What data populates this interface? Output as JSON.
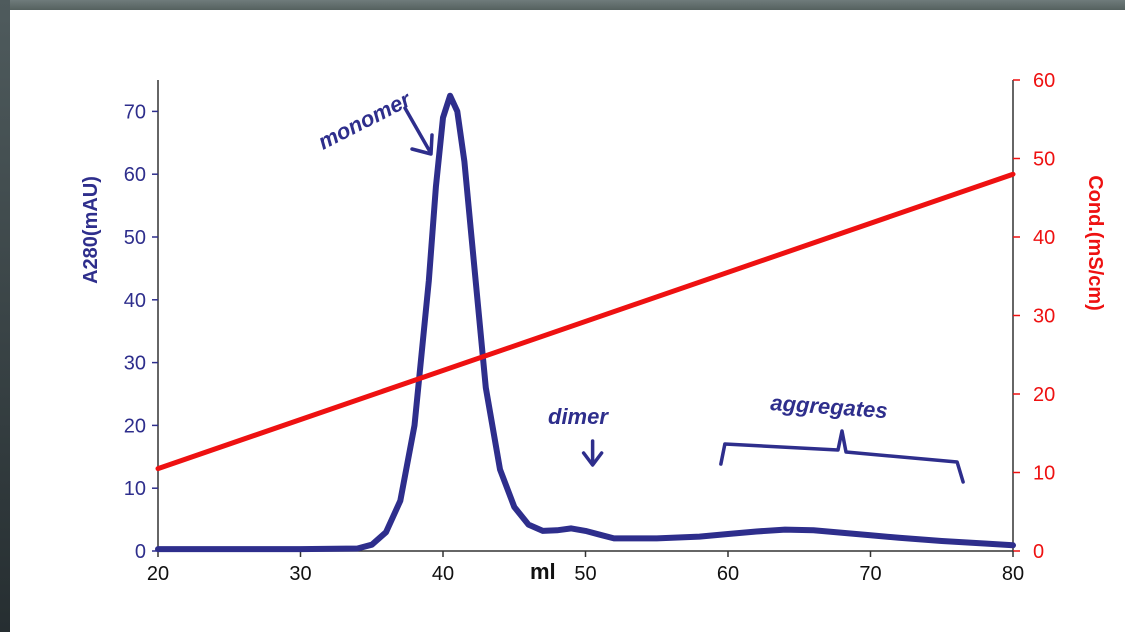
{
  "colors": {
    "absorbance": "#2e2e8c",
    "conductivity": "#ee1111",
    "axis": "#333333"
  },
  "chart_data": {
    "type": "line",
    "xlabel": "ml",
    "xlim": [
      20,
      80
    ],
    "x_ticks": [
      "20",
      "30",
      "40",
      "50",
      "60",
      "70",
      "80"
    ],
    "y_left": {
      "label": "A280(mAU)",
      "lim": [
        0,
        75
      ],
      "ticks": [
        "0",
        "10",
        "20",
        "30",
        "40",
        "50",
        "60",
        "70"
      ]
    },
    "y_right": {
      "label": "Cond.(mS/cm)",
      "lim": [
        0,
        60
      ],
      "ticks": [
        "0",
        "10",
        "20",
        "30",
        "40",
        "50",
        "60"
      ]
    },
    "series": [
      {
        "axis": "left",
        "x": [
          20,
          25,
          30,
          34,
          35,
          36,
          37,
          38,
          39,
          39.5,
          40,
          40.5,
          41,
          41.5,
          42,
          43,
          44,
          45,
          46,
          47,
          48,
          49,
          50,
          51,
          52,
          55,
          58,
          60,
          62,
          64,
          66,
          68,
          70,
          72,
          75,
          78,
          80
        ],
        "values": [
          0.3,
          0.3,
          0.3,
          0.4,
          1,
          3,
          8,
          20,
          43,
          58,
          69,
          72.5,
          70,
          62,
          50,
          26,
          13,
          7,
          4.2,
          3.2,
          3.3,
          3.6,
          3.2,
          2.6,
          2.0,
          2.0,
          2.3,
          2.7,
          3.1,
          3.4,
          3.3,
          2.9,
          2.5,
          2.1,
          1.6,
          1.2,
          0.9
        ]
      },
      {
        "axis": "right",
        "x": [
          20,
          80
        ],
        "values": [
          10.5,
          48
        ]
      }
    ],
    "annotations": [
      {
        "text": "monomer",
        "x": 39.5,
        "y": 50
      },
      {
        "text": "dimer",
        "x": 50.5,
        "y": 12
      },
      {
        "text": "aggregates",
        "x1": 59.5,
        "x2": 76.5,
        "y": 12
      }
    ]
  }
}
